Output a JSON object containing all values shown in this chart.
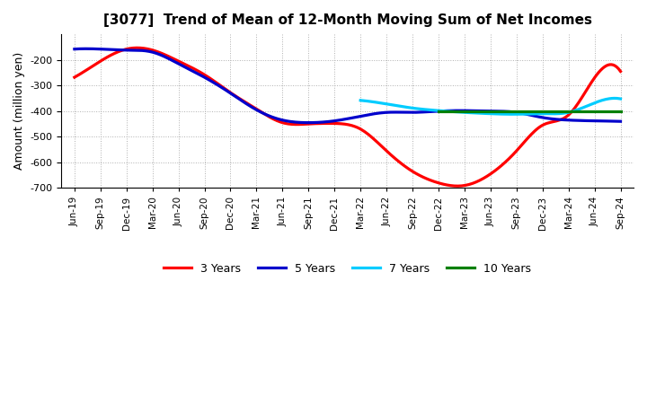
{
  "title": "[3077]  Trend of Mean of 12-Month Moving Sum of Net Incomes",
  "ylabel": "Amount (million yen)",
  "ylim": [
    -700,
    -100
  ],
  "yticks": [
    -700,
    -600,
    -500,
    -400,
    -300,
    -200
  ],
  "background_color": "#ffffff",
  "grid_color": "#b0b0b0",
  "x_labels": [
    "Jun-19",
    "Sep-19",
    "Dec-19",
    "Mar-20",
    "Jun-20",
    "Sep-20",
    "Dec-20",
    "Mar-21",
    "Jun-21",
    "Sep-21",
    "Dec-21",
    "Mar-22",
    "Jun-22",
    "Sep-22",
    "Dec-22",
    "Mar-23",
    "Jun-23",
    "Sep-23",
    "Dec-23",
    "Mar-24",
    "Jun-24",
    "Sep-24"
  ],
  "series_3y": {
    "color": "#ff0000",
    "x": [
      0,
      1,
      2,
      3,
      4,
      5,
      6,
      7,
      8,
      9,
      10,
      11,
      12,
      13,
      14,
      15,
      16,
      17,
      18,
      19,
      20,
      21
    ],
    "y": [
      -268,
      -205,
      -158,
      -162,
      -205,
      -258,
      -328,
      -392,
      -445,
      -450,
      -448,
      -470,
      -555,
      -635,
      -680,
      -690,
      -645,
      -555,
      -455,
      -415,
      -270,
      -245
    ]
  },
  "series_5y": {
    "color": "#0000cc",
    "x": [
      0,
      1,
      2,
      3,
      4,
      5,
      6,
      7,
      8,
      9,
      10,
      11,
      12,
      13,
      14,
      15,
      16,
      17,
      18,
      19,
      20,
      21
    ],
    "y": [
      -158,
      -158,
      -162,
      -170,
      -215,
      -268,
      -330,
      -395,
      -435,
      -445,
      -438,
      -420,
      -405,
      -405,
      -400,
      -398,
      -400,
      -405,
      -425,
      -435,
      -438,
      -440
    ]
  },
  "series_7y": {
    "color": "#00ccff",
    "x": [
      11,
      12,
      13,
      14,
      15,
      16,
      17,
      18,
      19,
      20,
      21
    ],
    "y": [
      -358,
      -372,
      -388,
      -398,
      -405,
      -410,
      -412,
      -410,
      -405,
      -368,
      -352
    ]
  },
  "series_10y": {
    "color": "#008000",
    "x": [
      14,
      15,
      16,
      17,
      18,
      19,
      20,
      21
    ],
    "y": [
      -400,
      -400,
      -400,
      -400,
      -400,
      -400,
      -400,
      -400
    ]
  },
  "legend_labels": [
    "3 Years",
    "5 Years",
    "7 Years",
    "10 Years"
  ],
  "legend_colors": [
    "#ff0000",
    "#0000cc",
    "#00ccff",
    "#008000"
  ]
}
